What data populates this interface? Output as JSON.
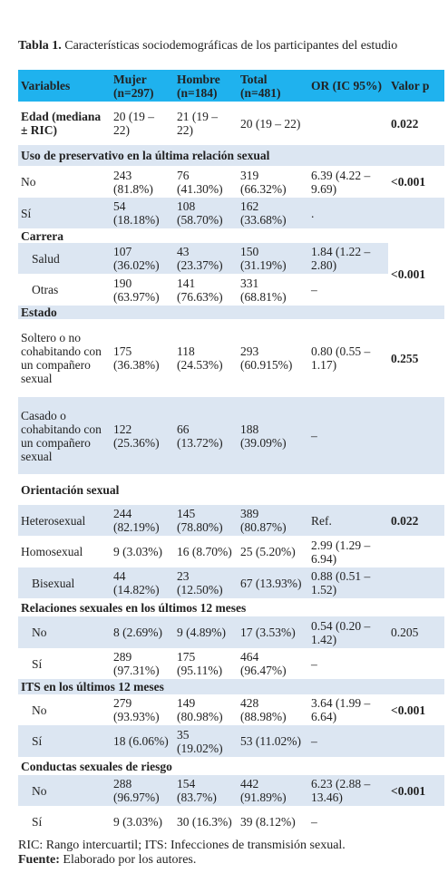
{
  "caption": {
    "label": "Tabla 1.",
    "text": "Características sociodemográficas de los participantes del estudio"
  },
  "table": {
    "headers": [
      "Variables",
      "Mujer (n=297)",
      "Hombre (n=184)",
      "Total (n=481)",
      "OR (IC 95%)",
      "Valor p"
    ],
    "rows": [
      {
        "label": "Edad (mediana ± RIC)",
        "mujer": "20 (19 – 22)",
        "hombre": "21 (19 – 22)",
        "total": "20 (19 – 22)",
        "p": "0.022"
      },
      {
        "section": "Uso de preservativo en la última relación sexual"
      },
      {
        "label": "No",
        "mujer": "243 (81.8%)",
        "hombre": "76 (41.30%)",
        "total": "319 (66.32%)",
        "or": "6.39 (4.22 – 9.69)",
        "p": "<0.001"
      },
      {
        "label": "Sí",
        "mujer": "54 (18.18%)",
        "hombre": "108 (58.70%)",
        "total": "162 (33.68%)",
        "or": "."
      },
      {
        "section": "Carrera"
      },
      {
        "label": "Salud",
        "mujer": "107 (36.02%)",
        "hombre": "43 (23.37%)",
        "total": "150 (31.19%)",
        "or": "1.84 (1.22 – 2.80)",
        "p": "<0.001"
      },
      {
        "label": "Otras",
        "mujer": "190 (63.97%)",
        "hombre": "141 (76.63%)",
        "total": "331 (68.81%)",
        "or": "–"
      },
      {
        "section": "Estado"
      },
      {
        "label": "Soltero o no cohabitando con un compañero sexual",
        "mujer": "175 (36.38%)",
        "hombre": "118 (24.53%)",
        "total": "293 (60.915%)",
        "or": "0.80 (0.55 – 1.17)",
        "p": "0.255"
      },
      {
        "label": "Casado o cohabitando con un compañero sexual",
        "mujer": "122 (25.36%)",
        "hombre": "66 (13.72%)",
        "total": "188 (39.09%)",
        "or": "–"
      },
      {
        "section": "Orientación sexual"
      },
      {
        "label": "Heterosexual",
        "mujer": "244 (82.19%)",
        "hombre": "145 (78.80%)",
        "total": "389 (80.87%)",
        "or": "Ref.",
        "p": "0.022"
      },
      {
        "label": "Homosexual",
        "mujer": "9 (3.03%)",
        "hombre": "16 (8.70%)",
        "total": "25 (5.20%)",
        "or": "2.99 (1.29 – 6.94)"
      },
      {
        "label": "Bisexual",
        "mujer": "44 (14.82%)",
        "hombre": "23 (12.50%)",
        "total": "67 (13.93%)",
        "or": "0.88 (0.51 – 1.52)"
      },
      {
        "section": "Relaciones sexuales en los últimos 12 meses"
      },
      {
        "label": "No",
        "mujer": "8 (2.69%)",
        "hombre": "9 (4.89%)",
        "total": "17 (3.53%)",
        "or": "0.54 (0.20 – 1.42)",
        "p": "0.205"
      },
      {
        "label": "Sí",
        "mujer": "289 (97.31%)",
        "hombre": "175 (95.11%)",
        "total": "464 (96.47%)",
        "or": "–"
      },
      {
        "section": "ITS en los últimos 12 meses"
      },
      {
        "label": "No",
        "mujer": "279 (93.93%)",
        "hombre": "149 (80.98%)",
        "total": "428 (88.98%)",
        "or": "3.64 (1.99 – 6.64)",
        "p": "<0.001"
      },
      {
        "label": "Sí",
        "mujer": "18 (6.06%)",
        "hombre": "35 (19.02%)",
        "total": "53 (11.02%)",
        "or": "–"
      },
      {
        "section": "Conductas sexuales de riesgo"
      },
      {
        "label": "No",
        "mujer": "288 (96.97%)",
        "hombre": "154 (83.7%)",
        "total": "442 (91.89%)",
        "or": "6.23 (2.88 – 13.46)",
        "p": "<0.001"
      },
      {
        "label": "Sí",
        "mujer": "9 (3.03%)",
        "hombre": "30 (16.3%)",
        "total": "39 (8.12%)",
        "or": "–"
      }
    ]
  },
  "footnotes": {
    "abbreviations": "RIC: Rango intercuartil; ITS: Infecciones de transmisión sexual.",
    "source_label": "Fuente:",
    "source_text": "Elaborado por los autores."
  }
}
